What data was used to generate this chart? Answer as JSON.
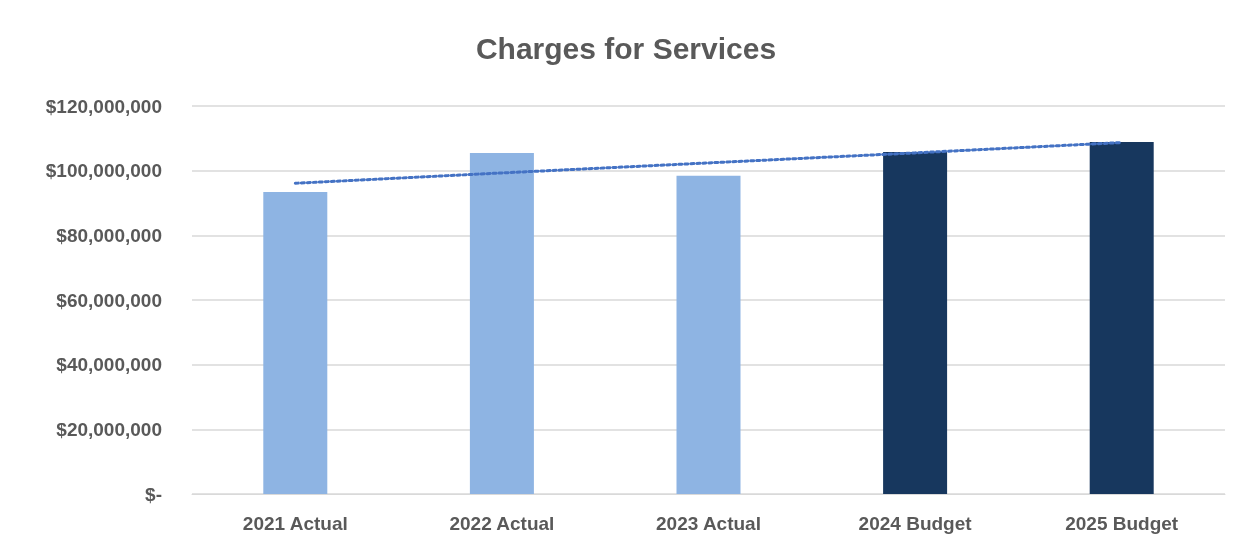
{
  "chart_data": {
    "type": "bar",
    "title": "Charges for Services",
    "categories": [
      "2021 Actual",
      "2022 Actual",
      "2023 Actual",
      "2024 Budget",
      "2025 Budget"
    ],
    "series": [
      {
        "values": [
          93400000,
          105500000,
          98400000,
          105800000,
          108900000
        ],
        "colors": [
          "#8eb4e3",
          "#8eb4e3",
          "#8eb4e3",
          "#17375e",
          "#17375e"
        ]
      },
      {
        "type": "line",
        "values": [
          96100000,
          99300000,
          102400000,
          105500000,
          108700000
        ],
        "color": "#4472c4",
        "line_style": "dotted",
        "marker": "none"
      }
    ],
    "ylim": [
      0,
      120000000
    ],
    "yticks": [
      {
        "value": 0,
        "label": "$-"
      },
      {
        "value": 20000000,
        "label": "$20,000,000"
      },
      {
        "value": 40000000,
        "label": "$40,000,000"
      },
      {
        "value": 60000000,
        "label": "$60,000,000"
      },
      {
        "value": 80000000,
        "label": "$80,000,000"
      },
      {
        "value": 100000000,
        "label": "$100,000,000"
      },
      {
        "value": 120000000,
        "label": "$120,000,000"
      }
    ],
    "grid": "y"
  }
}
